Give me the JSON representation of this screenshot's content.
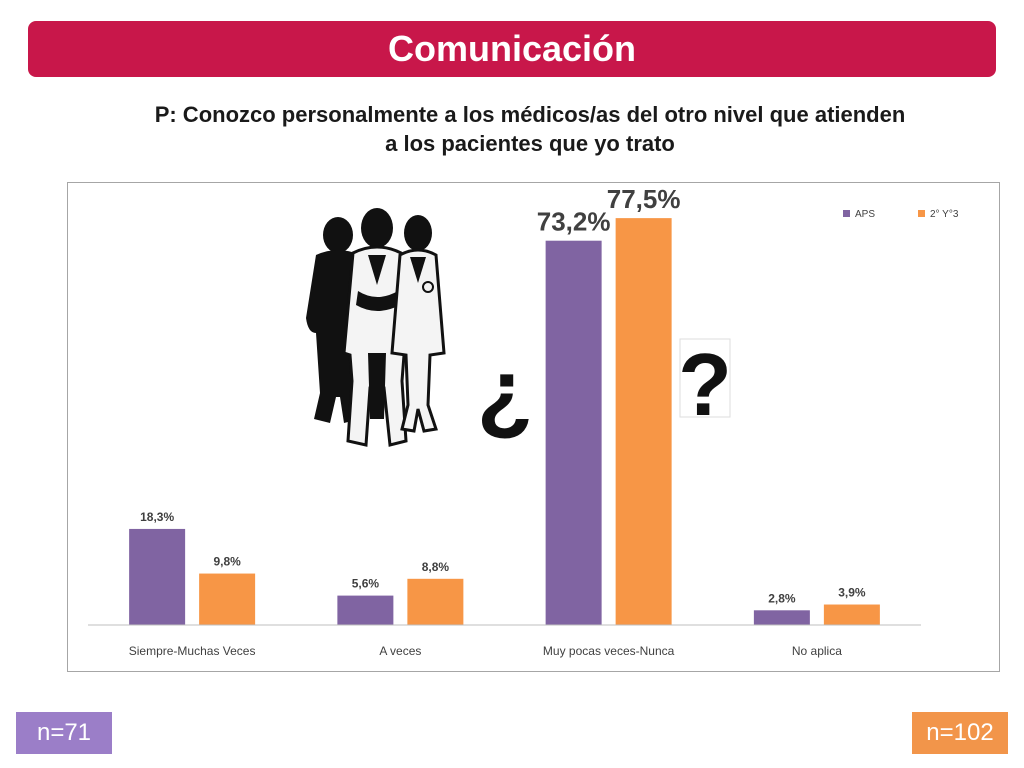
{
  "header": {
    "title": "Comunicación"
  },
  "question": {
    "line1": "P: Conozco personalmente a los médicos/as del otro nivel que atienden",
    "line2": "a los pacientes que yo trato"
  },
  "decoration": {
    "open_question": "¿",
    "close_question": "?"
  },
  "samples": {
    "left": "n=71",
    "right": "n=102"
  },
  "colors": {
    "banner": "#c8174a",
    "series_aps": "#8064a2",
    "series_2y3": "#f79646",
    "n_left": "#9b7ec8",
    "n_right": "#f2954a"
  },
  "chart_data": {
    "type": "bar",
    "categories": [
      "Siempre-Muchas Veces",
      "A veces",
      "Muy pocas veces-Nunca",
      "No aplica"
    ],
    "series": [
      {
        "name": "APS",
        "values": [
          18.3,
          5.6,
          73.2,
          2.8
        ],
        "labels": [
          "18,3%",
          "5,6%",
          "73,2%",
          "2,8%"
        ],
        "color": "#8064a2"
      },
      {
        "name": "2° Y°3",
        "values": [
          9.8,
          8.8,
          77.5,
          3.9
        ],
        "labels": [
          "9,8%",
          "8,8%",
          "77,5%",
          "3,9%"
        ],
        "color": "#f79646"
      }
    ],
    "ylim": [
      0,
      80
    ],
    "grid": false,
    "legend": "top-right"
  }
}
